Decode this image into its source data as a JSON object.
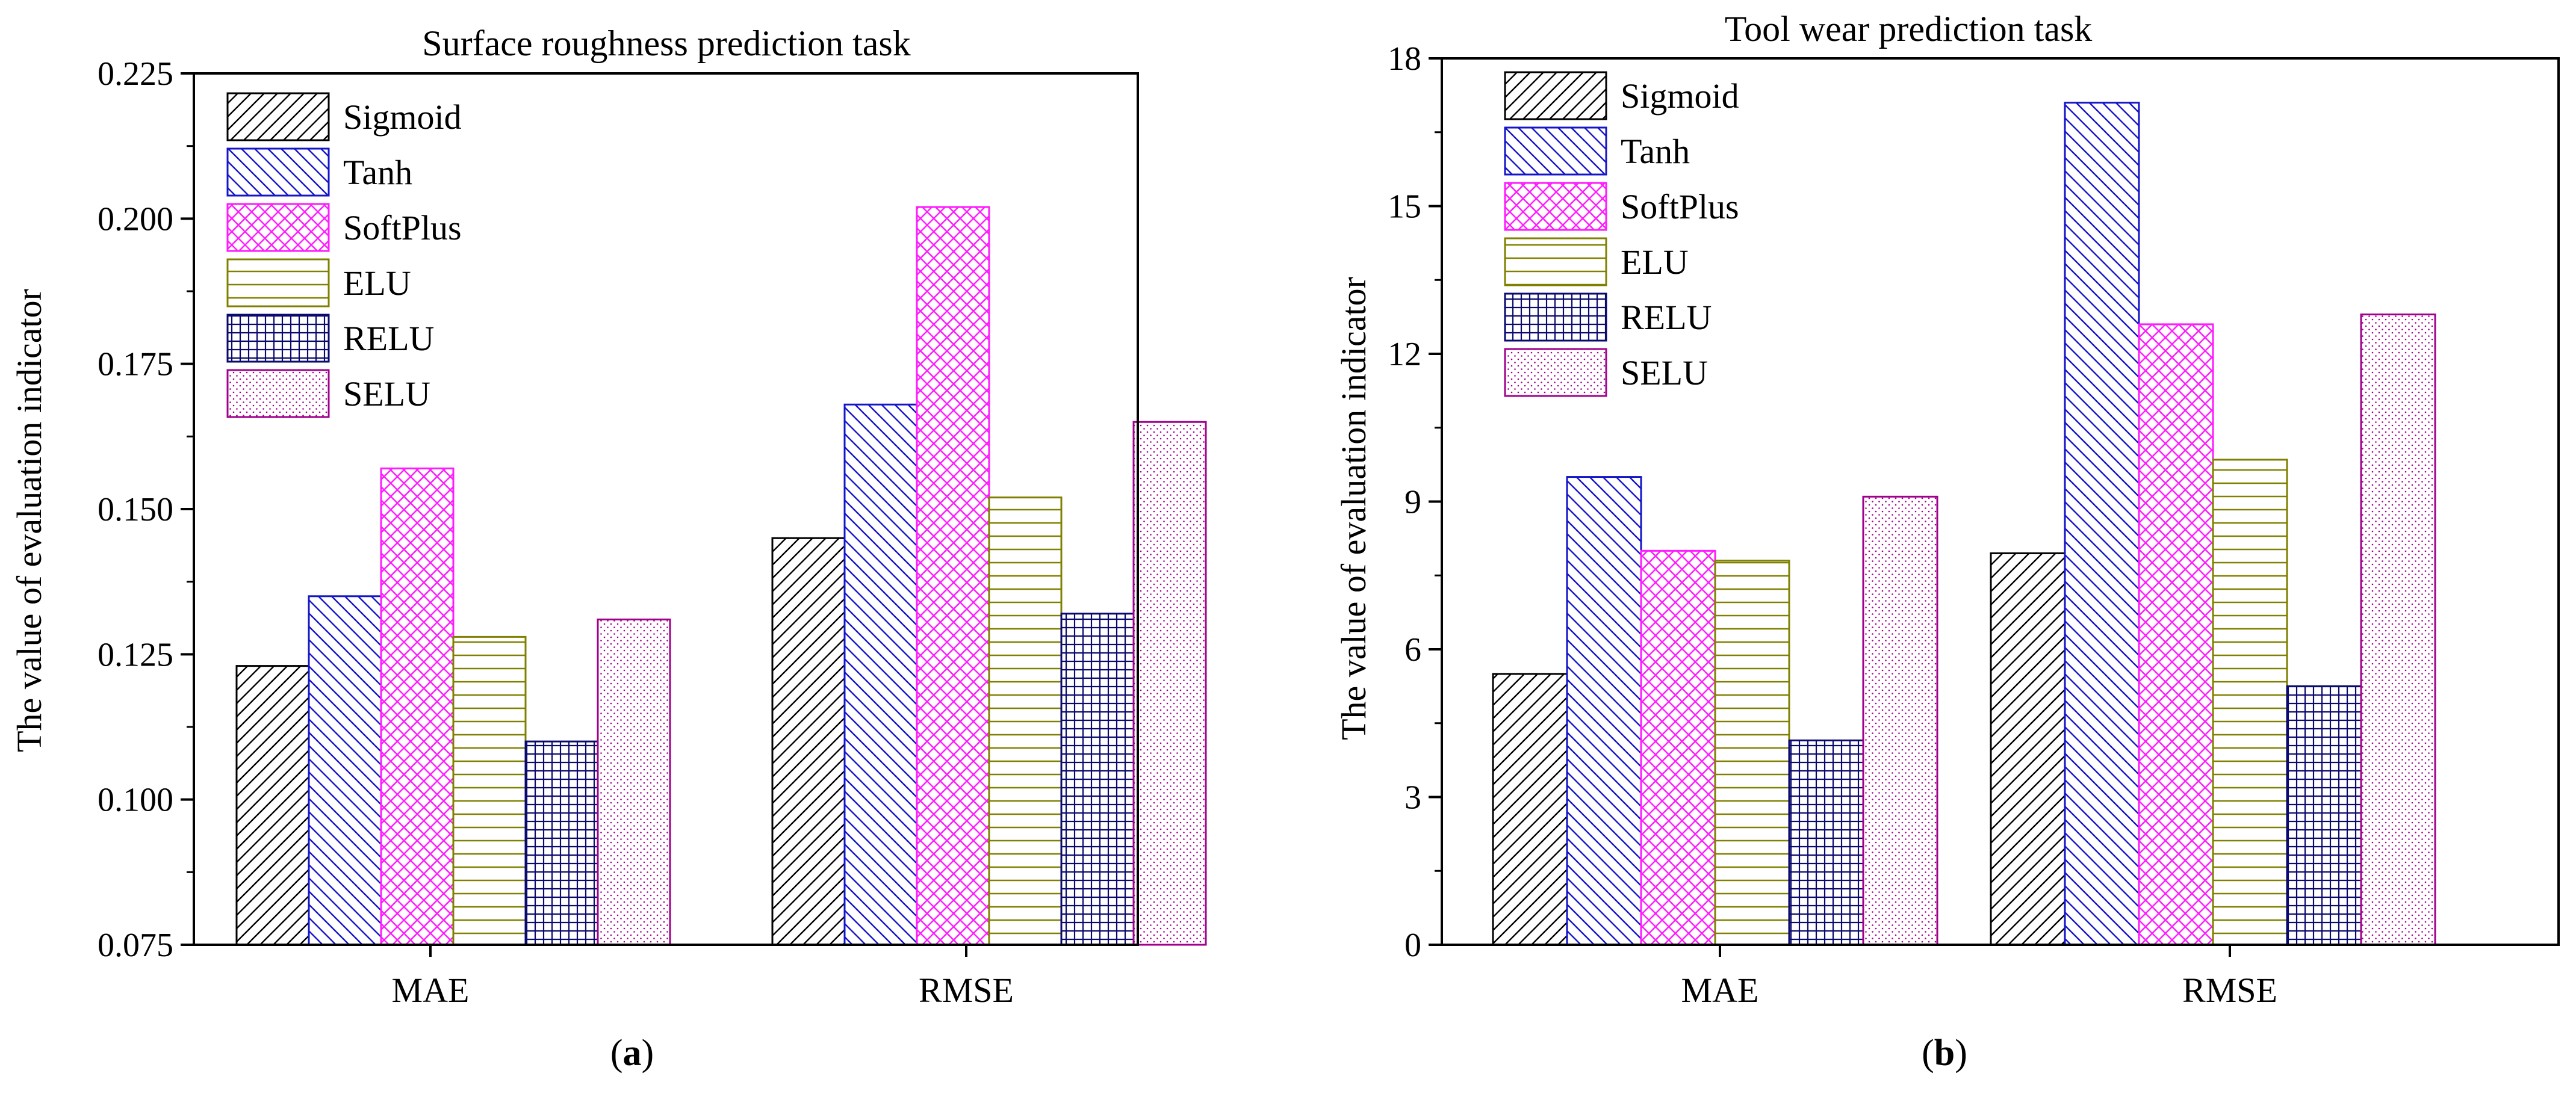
{
  "series_styles": [
    {
      "name": "Sigmoid",
      "color": "#000000",
      "pattern": "diag-right"
    },
    {
      "name": "Tanh",
      "color": "#1414c8",
      "pattern": "diag-left"
    },
    {
      "name": "SoftPlus",
      "color": "#ff1aff",
      "pattern": "cross-diag"
    },
    {
      "name": "ELU",
      "color": "#808000",
      "pattern": "horizontal"
    },
    {
      "name": "RELU",
      "color": "#0a0a6e",
      "pattern": "grid"
    },
    {
      "name": "SELU",
      "color": "#a0008c",
      "pattern": "dots"
    }
  ],
  "chart_data": [
    {
      "id": "a",
      "type": "bar",
      "title": "Surface roughness prediction task",
      "ylabel": "The value of evaluation indicator",
      "xlabel": "",
      "categories": [
        "MAE",
        "RMSE"
      ],
      "ylim": [
        0.075,
        0.225
      ],
      "yticks": [
        "0.075",
        "0.100",
        "0.125",
        "0.150",
        "0.175",
        "0.200",
        "0.225"
      ],
      "legend_position": "top-left",
      "panel_label": {
        "open": "(",
        "letter": "a",
        "close": ")"
      },
      "series": [
        {
          "name": "Sigmoid",
          "values": [
            0.123,
            0.145
          ]
        },
        {
          "name": "Tanh",
          "values": [
            0.135,
            0.168
          ]
        },
        {
          "name": "SoftPlus",
          "values": [
            0.157,
            0.202
          ]
        },
        {
          "name": "ELU",
          "values": [
            0.128,
            0.152
          ]
        },
        {
          "name": "RELU",
          "values": [
            0.11,
            0.132
          ]
        },
        {
          "name": "SELU",
          "values": [
            0.131,
            0.165
          ]
        }
      ]
    },
    {
      "id": "b",
      "type": "bar",
      "title": "Tool wear prediction task",
      "ylabel": "The value of evaluation indicator",
      "xlabel": "",
      "categories": [
        "MAE",
        "RMSE"
      ],
      "ylim": [
        0,
        18
      ],
      "yticks": [
        "0",
        "3",
        "6",
        "9",
        "12",
        "15",
        "18"
      ],
      "legend_position": "top-left",
      "panel_label": {
        "open": "(",
        "letter": "b",
        "close": ")"
      },
      "series": [
        {
          "name": "Sigmoid",
          "values": [
            5.5,
            7.95
          ]
        },
        {
          "name": "Tanh",
          "values": [
            9.5,
            17.1
          ]
        },
        {
          "name": "SoftPlus",
          "values": [
            8.0,
            12.6
          ]
        },
        {
          "name": "ELU",
          "values": [
            7.8,
            9.85
          ]
        },
        {
          "name": "RELU",
          "values": [
            4.15,
            5.25
          ]
        },
        {
          "name": "SELU",
          "values": [
            9.1,
            12.8
          ]
        }
      ]
    }
  ]
}
